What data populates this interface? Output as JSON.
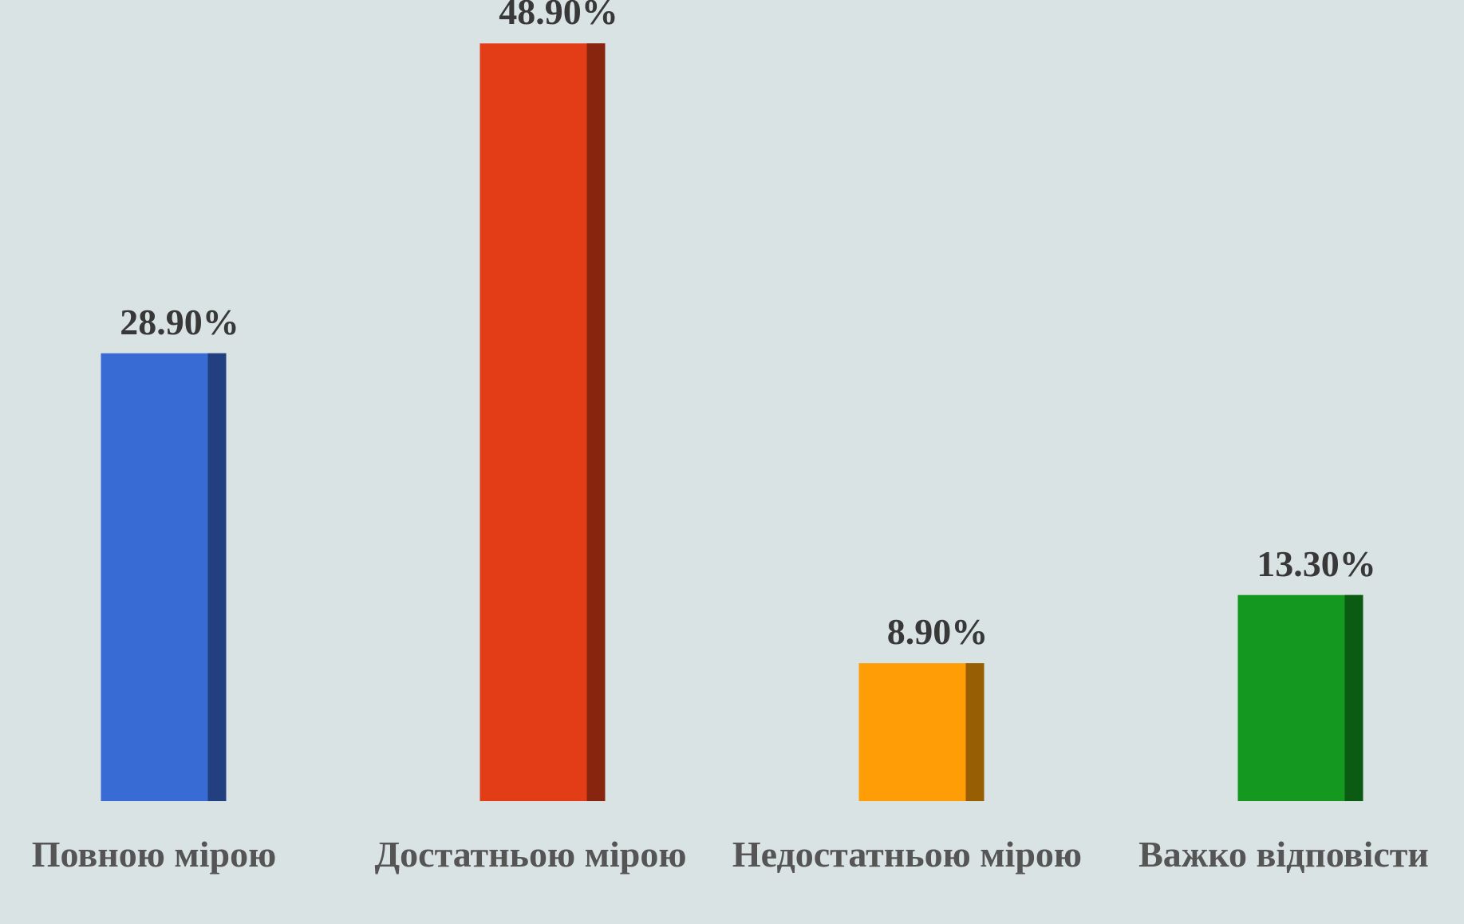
{
  "chart_data": {
    "type": "bar",
    "categories": [
      "Повною мірою",
      "Достатньою мірою",
      "Недостатньою мірою",
      "Важко відповісти"
    ],
    "values": [
      28.9,
      48.9,
      8.9,
      13.3
    ],
    "value_labels": [
      "28.90%",
      "48.90%",
      "8.90%",
      "13.30%"
    ],
    "colors": [
      "#386bd4",
      "#e23d17",
      "#fe9d06",
      "#14981f"
    ],
    "ylim": [
      0,
      50
    ]
  }
}
